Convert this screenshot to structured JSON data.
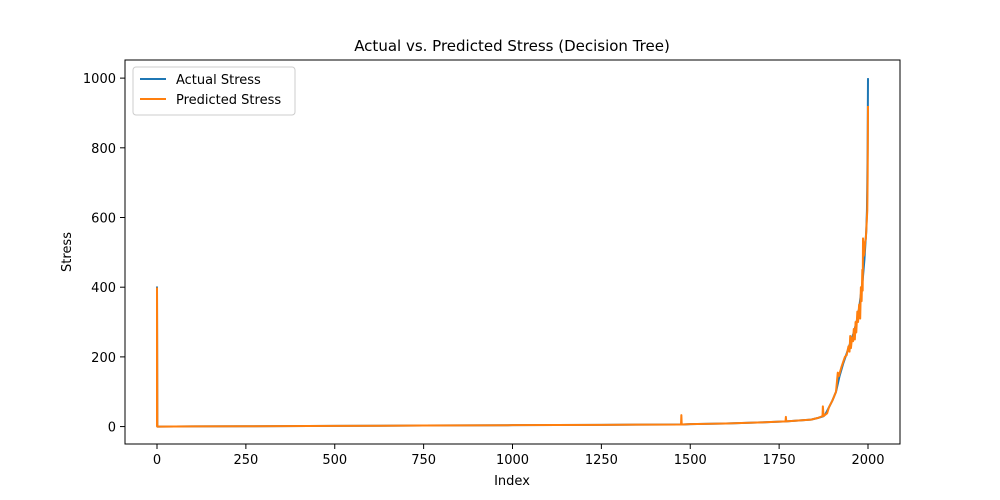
{
  "chart_data": {
    "type": "line",
    "title": "Actual vs. Predicted Stress (Decision Tree)",
    "xlabel": "Index",
    "ylabel": "Stress",
    "xlim": [
      -90,
      2090
    ],
    "ylim": [
      -50,
      1052
    ],
    "xticks": [
      0,
      250,
      500,
      750,
      1000,
      1250,
      1500,
      1750,
      2000
    ],
    "yticks": [
      0,
      200,
      400,
      600,
      800,
      1000
    ],
    "grid": false,
    "legend_position": "top-left",
    "series": [
      {
        "name": "Actual Stress",
        "color": "#1f77b4",
        "points": [
          [
            0,
            0
          ],
          [
            0,
            400
          ],
          [
            1,
            0
          ],
          [
            100,
            0.5
          ],
          [
            250,
            1
          ],
          [
            500,
            2
          ],
          [
            750,
            3
          ],
          [
            1000,
            4
          ],
          [
            1250,
            5
          ],
          [
            1470,
            6
          ],
          [
            1475,
            6
          ],
          [
            1480,
            6
          ],
          [
            1500,
            7
          ],
          [
            1600,
            9
          ],
          [
            1700,
            12
          ],
          [
            1770,
            15
          ],
          [
            1800,
            17
          ],
          [
            1840,
            20
          ],
          [
            1860,
            25
          ],
          [
            1875,
            30
          ],
          [
            1880,
            35
          ],
          [
            1890,
            55
          ],
          [
            1900,
            75
          ],
          [
            1910,
            100
          ],
          [
            1920,
            145
          ],
          [
            1930,
            180
          ],
          [
            1940,
            210
          ],
          [
            1950,
            240
          ],
          [
            1960,
            270
          ],
          [
            1970,
            310
          ],
          [
            1975,
            340
          ],
          [
            1980,
            380
          ],
          [
            1985,
            420
          ],
          [
            1990,
            480
          ],
          [
            1993,
            530
          ],
          [
            1995,
            560
          ],
          [
            1997,
            620
          ],
          [
            1998,
            700
          ],
          [
            1999,
            800
          ],
          [
            2000,
            1000
          ]
        ]
      },
      {
        "name": "Predicted Stress",
        "color": "#ff7f0e",
        "points": [
          [
            0,
            0
          ],
          [
            0,
            397
          ],
          [
            1,
            0
          ],
          [
            100,
            0.5
          ],
          [
            250,
            1
          ],
          [
            500,
            2
          ],
          [
            750,
            3
          ],
          [
            1000,
            4
          ],
          [
            1250,
            5
          ],
          [
            1474,
            6
          ],
          [
            1475,
            33
          ],
          [
            1476,
            6
          ],
          [
            1500,
            7
          ],
          [
            1600,
            9
          ],
          [
            1700,
            12
          ],
          [
            1768,
            15
          ],
          [
            1769,
            28
          ],
          [
            1770,
            15
          ],
          [
            1800,
            17
          ],
          [
            1840,
            20
          ],
          [
            1860,
            25
          ],
          [
            1872,
            30
          ],
          [
            1873,
            58
          ],
          [
            1875,
            30
          ],
          [
            1885,
            38
          ],
          [
            1890,
            55
          ],
          [
            1900,
            75
          ],
          [
            1910,
            100
          ],
          [
            1915,
            155
          ],
          [
            1918,
            145
          ],
          [
            1925,
            170
          ],
          [
            1930,
            185
          ],
          [
            1935,
            200
          ],
          [
            1940,
            205
          ],
          [
            1945,
            230
          ],
          [
            1948,
            215
          ],
          [
            1950,
            260
          ],
          [
            1952,
            225
          ],
          [
            1955,
            255
          ],
          [
            1958,
            245
          ],
          [
            1960,
            280
          ],
          [
            1963,
            250
          ],
          [
            1965,
            300
          ],
          [
            1967,
            270
          ],
          [
            1970,
            330
          ],
          [
            1972,
            300
          ],
          [
            1975,
            350
          ],
          [
            1978,
            310
          ],
          [
            1980,
            400
          ],
          [
            1982,
            360
          ],
          [
            1984,
            450
          ],
          [
            1985,
            390
          ],
          [
            1986,
            540
          ],
          [
            1988,
            490
          ],
          [
            1990,
            500
          ],
          [
            1992,
            530
          ],
          [
            1994,
            540
          ],
          [
            1996,
            580
          ],
          [
            1998,
            620
          ],
          [
            1999,
            720
          ],
          [
            2000,
            920
          ]
        ]
      }
    ]
  }
}
